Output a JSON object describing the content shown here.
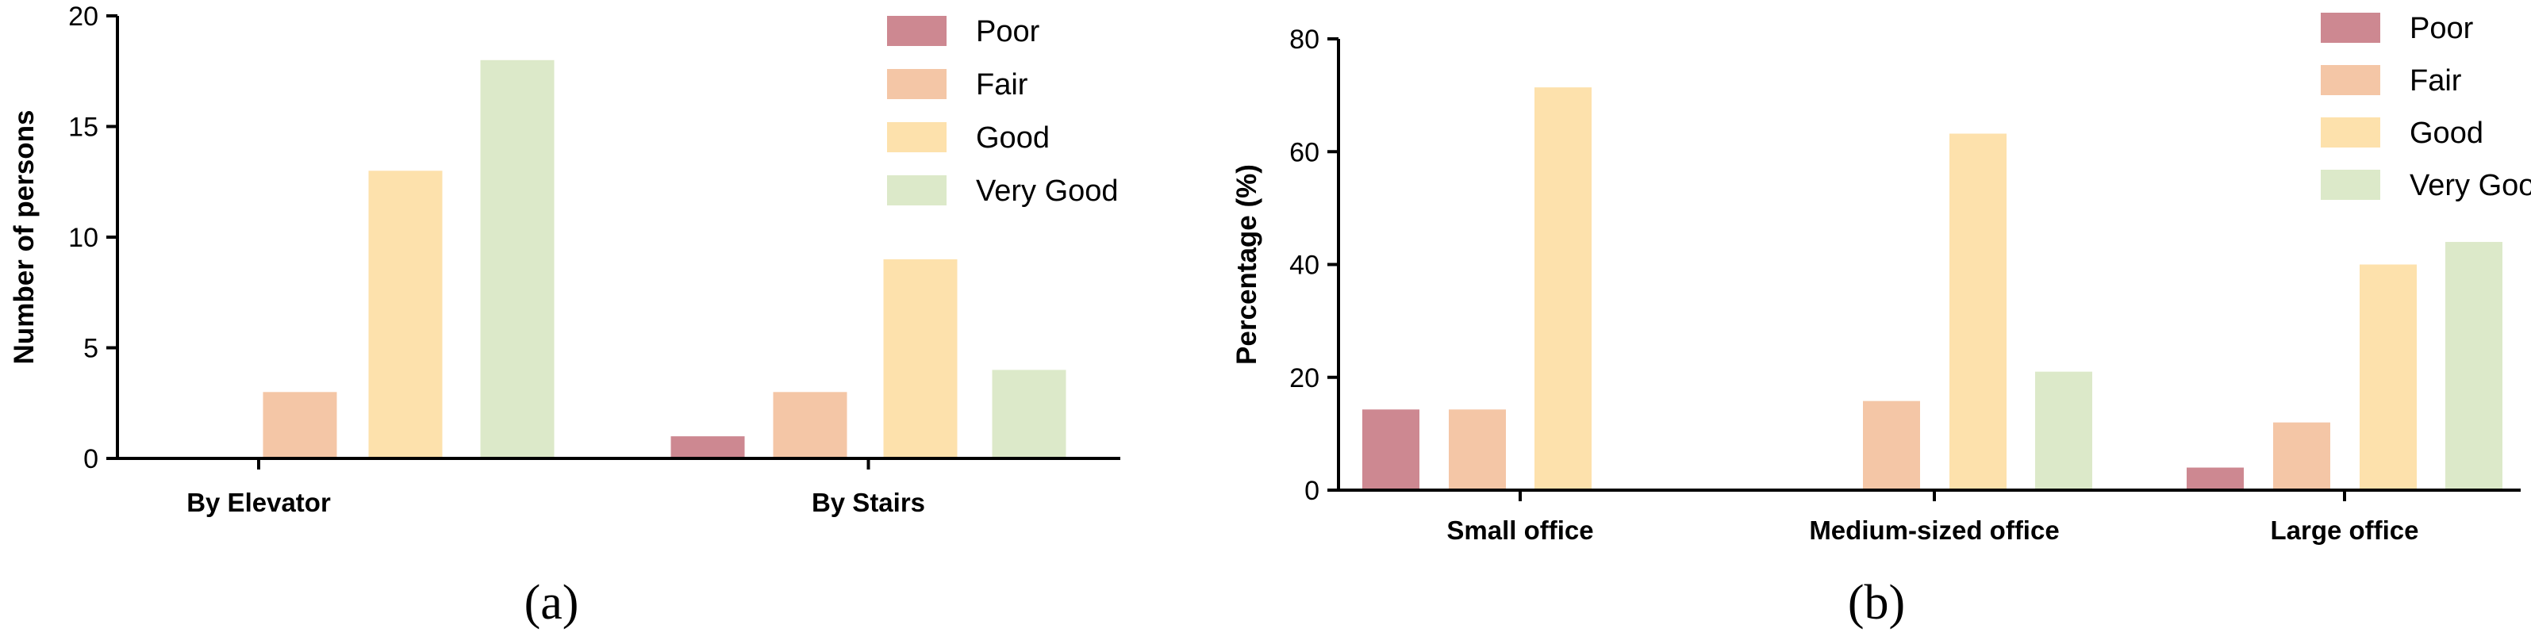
{
  "colors": {
    "Poor": "#cd8891",
    "Fair": "#f4c6a6",
    "Good": "#fde1ac",
    "Very Good": "#dce9c9"
  },
  "chart_data": [
    {
      "type": "bar",
      "panel_label": "(a)",
      "title": "",
      "xlabel": "",
      "ylabel": "Number of persons",
      "ylim": [
        0,
        20
      ],
      "yticks": [
        0,
        5,
        10,
        15,
        20
      ],
      "categories": [
        "By Elevator",
        "By Stairs"
      ],
      "series": [
        {
          "name": "Poor",
          "values": [
            0,
            1
          ]
        },
        {
          "name": "Fair",
          "values": [
            3,
            3
          ]
        },
        {
          "name": "Good",
          "values": [
            13,
            9
          ]
        },
        {
          "name": "Very Good",
          "values": [
            18,
            4
          ]
        }
      ],
      "legend": "top-right",
      "grid": false
    },
    {
      "type": "bar",
      "panel_label": "(b)",
      "title": "",
      "xlabel": "",
      "ylabel": "Percentage (%)",
      "ylim": [
        0,
        80
      ],
      "yticks": [
        0,
        20,
        40,
        60,
        80
      ],
      "categories": [
        "Small office",
        "Medium-sized office",
        "Large office"
      ],
      "series": [
        {
          "name": "Poor",
          "values": [
            14.3,
            0,
            4
          ]
        },
        {
          "name": "Fair",
          "values": [
            14.3,
            15.8,
            12
          ]
        },
        {
          "name": "Good",
          "values": [
            71.4,
            63.2,
            40
          ]
        },
        {
          "name": "Very Good",
          "values": [
            0,
            21,
            44
          ]
        }
      ],
      "legend": "top-right",
      "grid": false
    }
  ]
}
